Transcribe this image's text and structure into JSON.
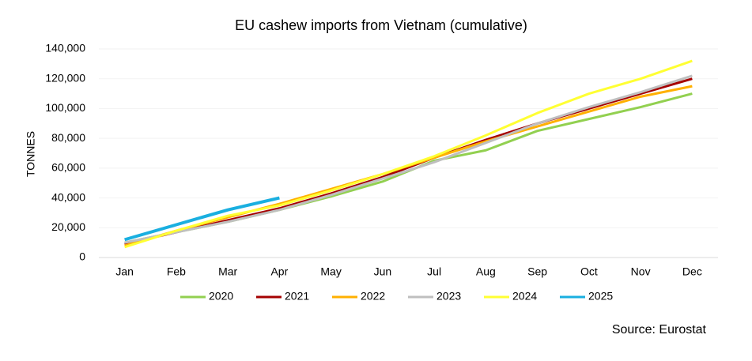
{
  "chart_data": {
    "type": "line",
    "title": "EU cashew imports from Vietnam (cumulative)",
    "y_label": "TONNES",
    "source": "Source: Eurostat",
    "categories": [
      "Jan",
      "Feb",
      "Mar",
      "Apr",
      "May",
      "Jun",
      "Jul",
      "Aug",
      "Sep",
      "Oct",
      "Nov",
      "Dec"
    ],
    "series": [
      {
        "name": "2020",
        "color": "#92d050",
        "values": [
          10000,
          17000,
          24000,
          32000,
          41000,
          51000,
          65000,
          72000,
          85000,
          93000,
          101000,
          110000
        ]
      },
      {
        "name": "2021",
        "color": "#a50000",
        "values": [
          9000,
          17000,
          25000,
          33000,
          43000,
          54000,
          67000,
          79000,
          90000,
          100000,
          110000,
          120000
        ]
      },
      {
        "name": "2022",
        "color": "#ffb000",
        "values": [
          8000,
          18000,
          27000,
          36000,
          46000,
          56000,
          67000,
          78000,
          88000,
          98000,
          108000,
          115000
        ]
      },
      {
        "name": "2023",
        "color": "#bfbfbf",
        "values": [
          10000,
          17000,
          24000,
          32000,
          42000,
          53000,
          64000,
          77000,
          90000,
          101000,
          111000,
          122000
        ]
      },
      {
        "name": "2024",
        "color": "#ffff33",
        "values": [
          7000,
          18000,
          28000,
          35000,
          45000,
          56000,
          68000,
          82000,
          97000,
          110000,
          120000,
          132000
        ]
      },
      {
        "name": "2025",
        "color": "#1aafe0",
        "values": [
          12000,
          22000,
          32000,
          40000,
          null,
          null,
          null,
          null,
          null,
          null,
          null,
          null
        ]
      }
    ],
    "ylim": [
      0,
      140000
    ],
    "yticks": [
      0,
      {
        "value": 20000,
        "label": "20,000"
      },
      {
        "value": 40000,
        "label": "40,000"
      },
      {
        "value": 60000,
        "label": "60,000"
      },
      {
        "value": 80000,
        "label": "80,000"
      },
      {
        "value": 100000,
        "label": "100,000"
      },
      {
        "value": 120000,
        "label": "120,000"
      },
      {
        "value": 140000,
        "label": "140,000"
      }
    ],
    "grid": true,
    "legend": "bottom"
  }
}
